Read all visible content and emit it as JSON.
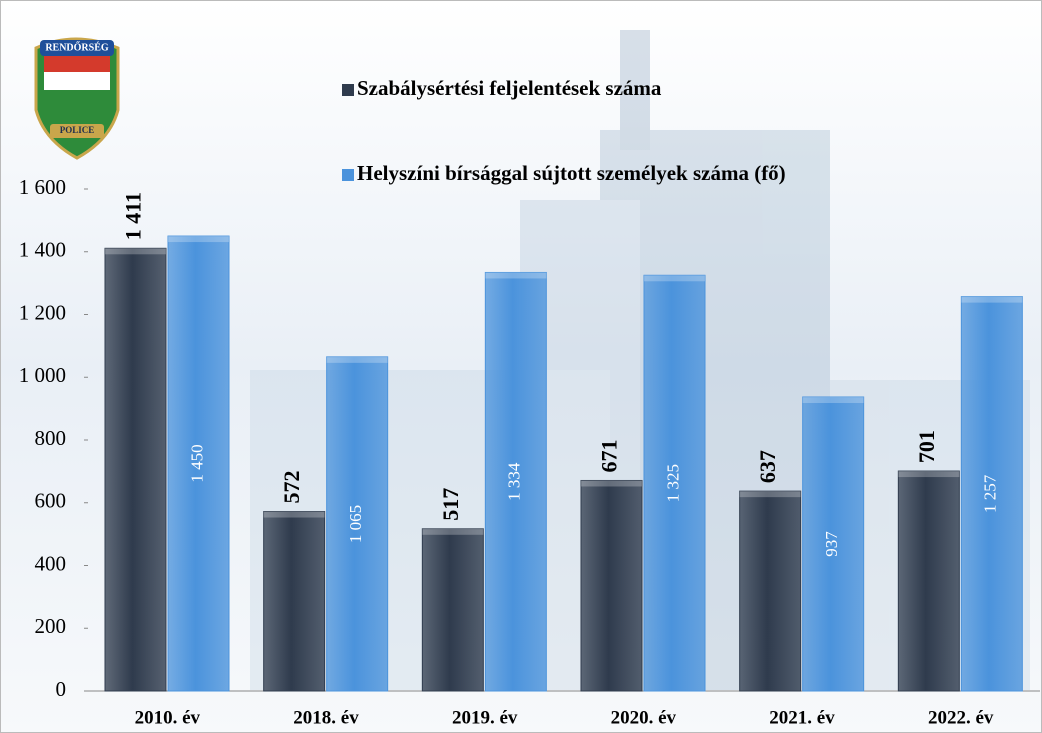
{
  "logo_text": [
    "RENDŐRSÉG",
    "POLICE"
  ],
  "chart_data": {
    "type": "bar",
    "categories": [
      "2010. év",
      "2018. év",
      "2019. év",
      "2020. év",
      "2021. év",
      "2022. év"
    ],
    "series": [
      {
        "name": "Szabálysértési feljelentések száma",
        "color": "#2f3b4d",
        "values": [
          1411,
          572,
          517,
          671,
          637,
          701
        ],
        "value_labels": [
          "1 411",
          "572",
          "517",
          "671",
          "637",
          "701"
        ]
      },
      {
        "name": "Helyszíni bírsággal sújtott személyek száma (fő)",
        "color": "#4b93dc",
        "values": [
          1450,
          1065,
          1334,
          1325,
          937,
          1257
        ],
        "value_labels": [
          "1 450",
          "1 065",
          "1 334",
          "1 325",
          "937",
          "1 257"
        ]
      }
    ],
    "ylim": [
      0,
      1600
    ],
    "yticks": [
      0,
      200,
      400,
      600,
      800,
      {
        "value": 1000,
        "label": "1 000"
      },
      {
        "value": 1200,
        "label": "1 200"
      },
      {
        "value": 1400,
        "label": "1 400"
      },
      {
        "value": 1600,
        "label": "1 600"
      }
    ],
    "grid": false
  }
}
